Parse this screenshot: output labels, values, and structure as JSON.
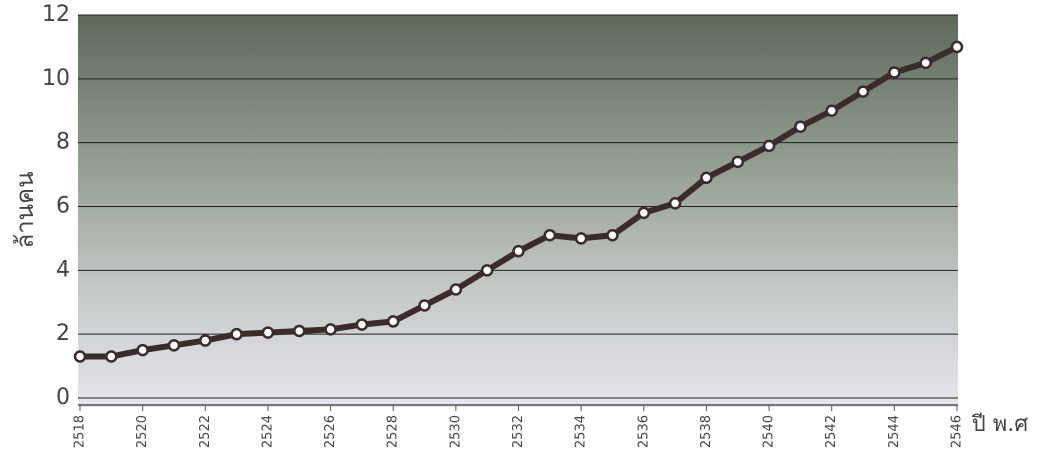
{
  "chart_data": {
    "type": "line",
    "y_label": "ล้านคน",
    "x_label": "ปี พ.ศ",
    "x": [
      2518,
      2519,
      2520,
      2521,
      2522,
      2523,
      2524,
      2525,
      2526,
      2527,
      2528,
      2529,
      2530,
      2531,
      2532,
      2533,
      2534,
      2535,
      2536,
      2537,
      2538,
      2539,
      2540,
      2541,
      2542,
      2543,
      2544,
      2545,
      2546
    ],
    "series": [
      {
        "color": "#3b2b2b",
        "values": [
          1.3,
          1.3,
          1.5,
          1.65,
          1.8,
          2.0,
          2.05,
          2.1,
          2.15,
          2.3,
          2.4,
          2.9,
          3.4,
          4.0,
          4.6,
          5.1,
          5.0,
          5.1,
          5.8,
          6.1,
          6.9,
          7.4,
          7.9,
          8.5,
          9.0,
          9.6,
          10.2,
          10.5,
          11.0
        ]
      }
    ],
    "xlim": [
      2518,
      2546
    ],
    "xticks": [
      2518,
      2520,
      2522,
      2524,
      2526,
      2528,
      2530,
      2532,
      2534,
      2536,
      2538,
      2540,
      2542,
      2544,
      2546
    ],
    "ylim": [
      0,
      12
    ],
    "yticks": [
      0,
      2,
      4,
      6,
      8,
      10,
      12
    ],
    "grid": true
  }
}
